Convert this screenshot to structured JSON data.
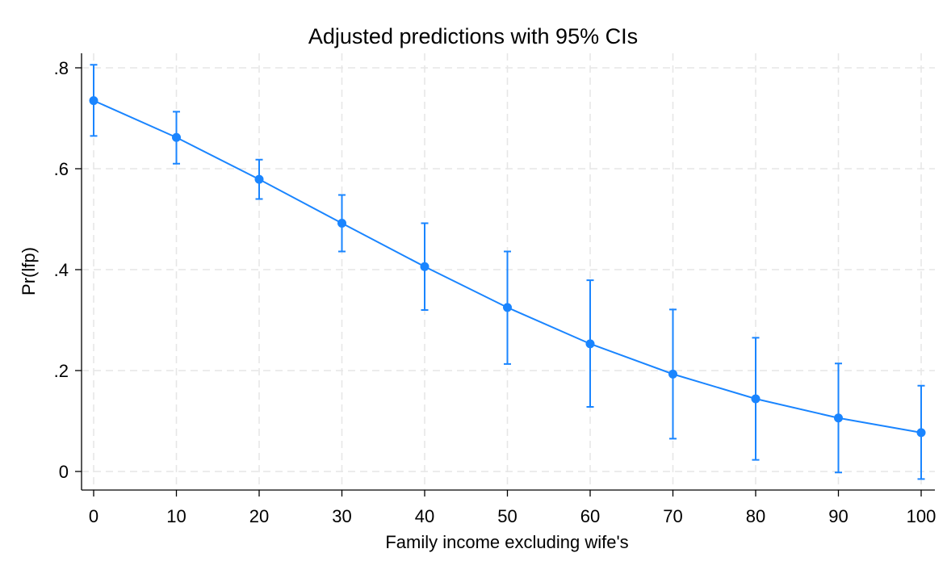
{
  "chart_data": {
    "type": "line",
    "title": "Adjusted predictions with 95% CIs",
    "xlabel": "Family income excluding wife's",
    "ylabel": "Pr(lfp)",
    "xlim": [
      0,
      100
    ],
    "ylim": [
      0,
      0.8
    ],
    "x_ticks": [
      0,
      10,
      20,
      30,
      40,
      50,
      60,
      70,
      80,
      90,
      100
    ],
    "x_tick_labels": [
      "0",
      "10",
      "20",
      "30",
      "40",
      "50",
      "60",
      "70",
      "80",
      "90",
      "100"
    ],
    "y_ticks": [
      0,
      0.2,
      0.4,
      0.6,
      0.8
    ],
    "y_tick_labels": [
      "0",
      ".2",
      ".4",
      ".6",
      ".8"
    ],
    "grid": true,
    "color": "#1a85ff",
    "series": [
      {
        "x": [
          0,
          10,
          20,
          30,
          40,
          50,
          60,
          70,
          80,
          90,
          100
        ],
        "y": [
          0.735,
          0.662,
          0.579,
          0.492,
          0.406,
          0.325,
          0.253,
          0.193,
          0.144,
          0.106,
          0.077
        ],
        "ci_lower": [
          0.665,
          0.61,
          0.54,
          0.436,
          0.32,
          0.213,
          0.128,
          0.065,
          0.023,
          -0.002,
          -0.015
        ],
        "ci_upper": [
          0.806,
          0.713,
          0.618,
          0.548,
          0.492,
          0.436,
          0.379,
          0.321,
          0.265,
          0.214,
          0.17
        ]
      }
    ]
  }
}
